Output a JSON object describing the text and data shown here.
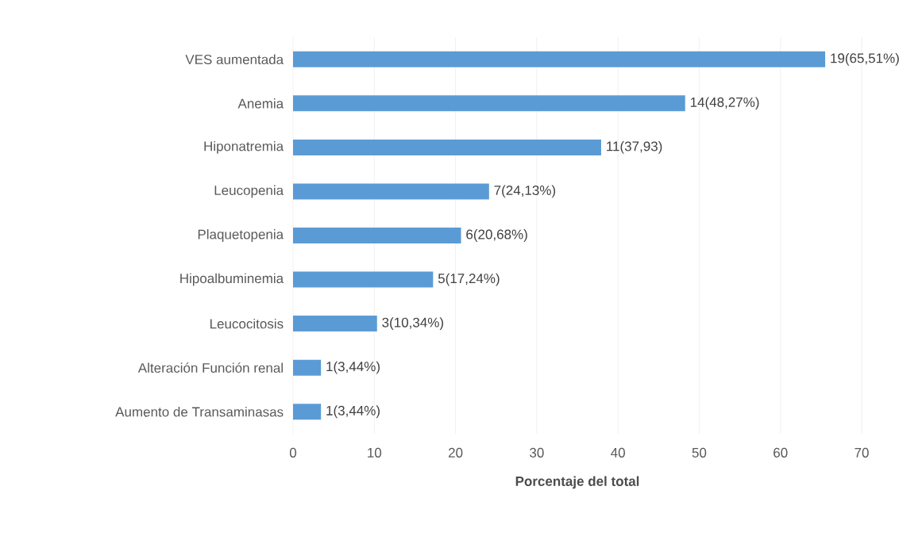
{
  "chart_data": {
    "type": "bar",
    "orientation": "horizontal",
    "xlabel": "Porcentaje del total",
    "categories": [
      "VES aumentada",
      "Anemia",
      "Hiponatremia",
      "Leucopenia",
      "Plaquetopenia",
      "Hipoalbuminemia",
      "Leucocitosis",
      "Alteración Función renal",
      "Aumento de Transaminasas"
    ],
    "values": [
      65.51,
      48.27,
      37.93,
      24.13,
      20.68,
      17.24,
      10.34,
      3.44,
      3.44
    ],
    "value_labels": [
      "19(65,51%)",
      "14(48,27%)",
      "11(37,93)",
      "7(24,13%)",
      "6(20,68%)",
      "5(17,24%)",
      "3(10,34%)",
      "1(3,44%)",
      "1(3,44%)"
    ],
    "color": "#5b9bd5",
    "xlim": [
      0,
      70
    ],
    "xticks": [
      0,
      10,
      20,
      30,
      40,
      50,
      60,
      70
    ],
    "grid": "x"
  }
}
